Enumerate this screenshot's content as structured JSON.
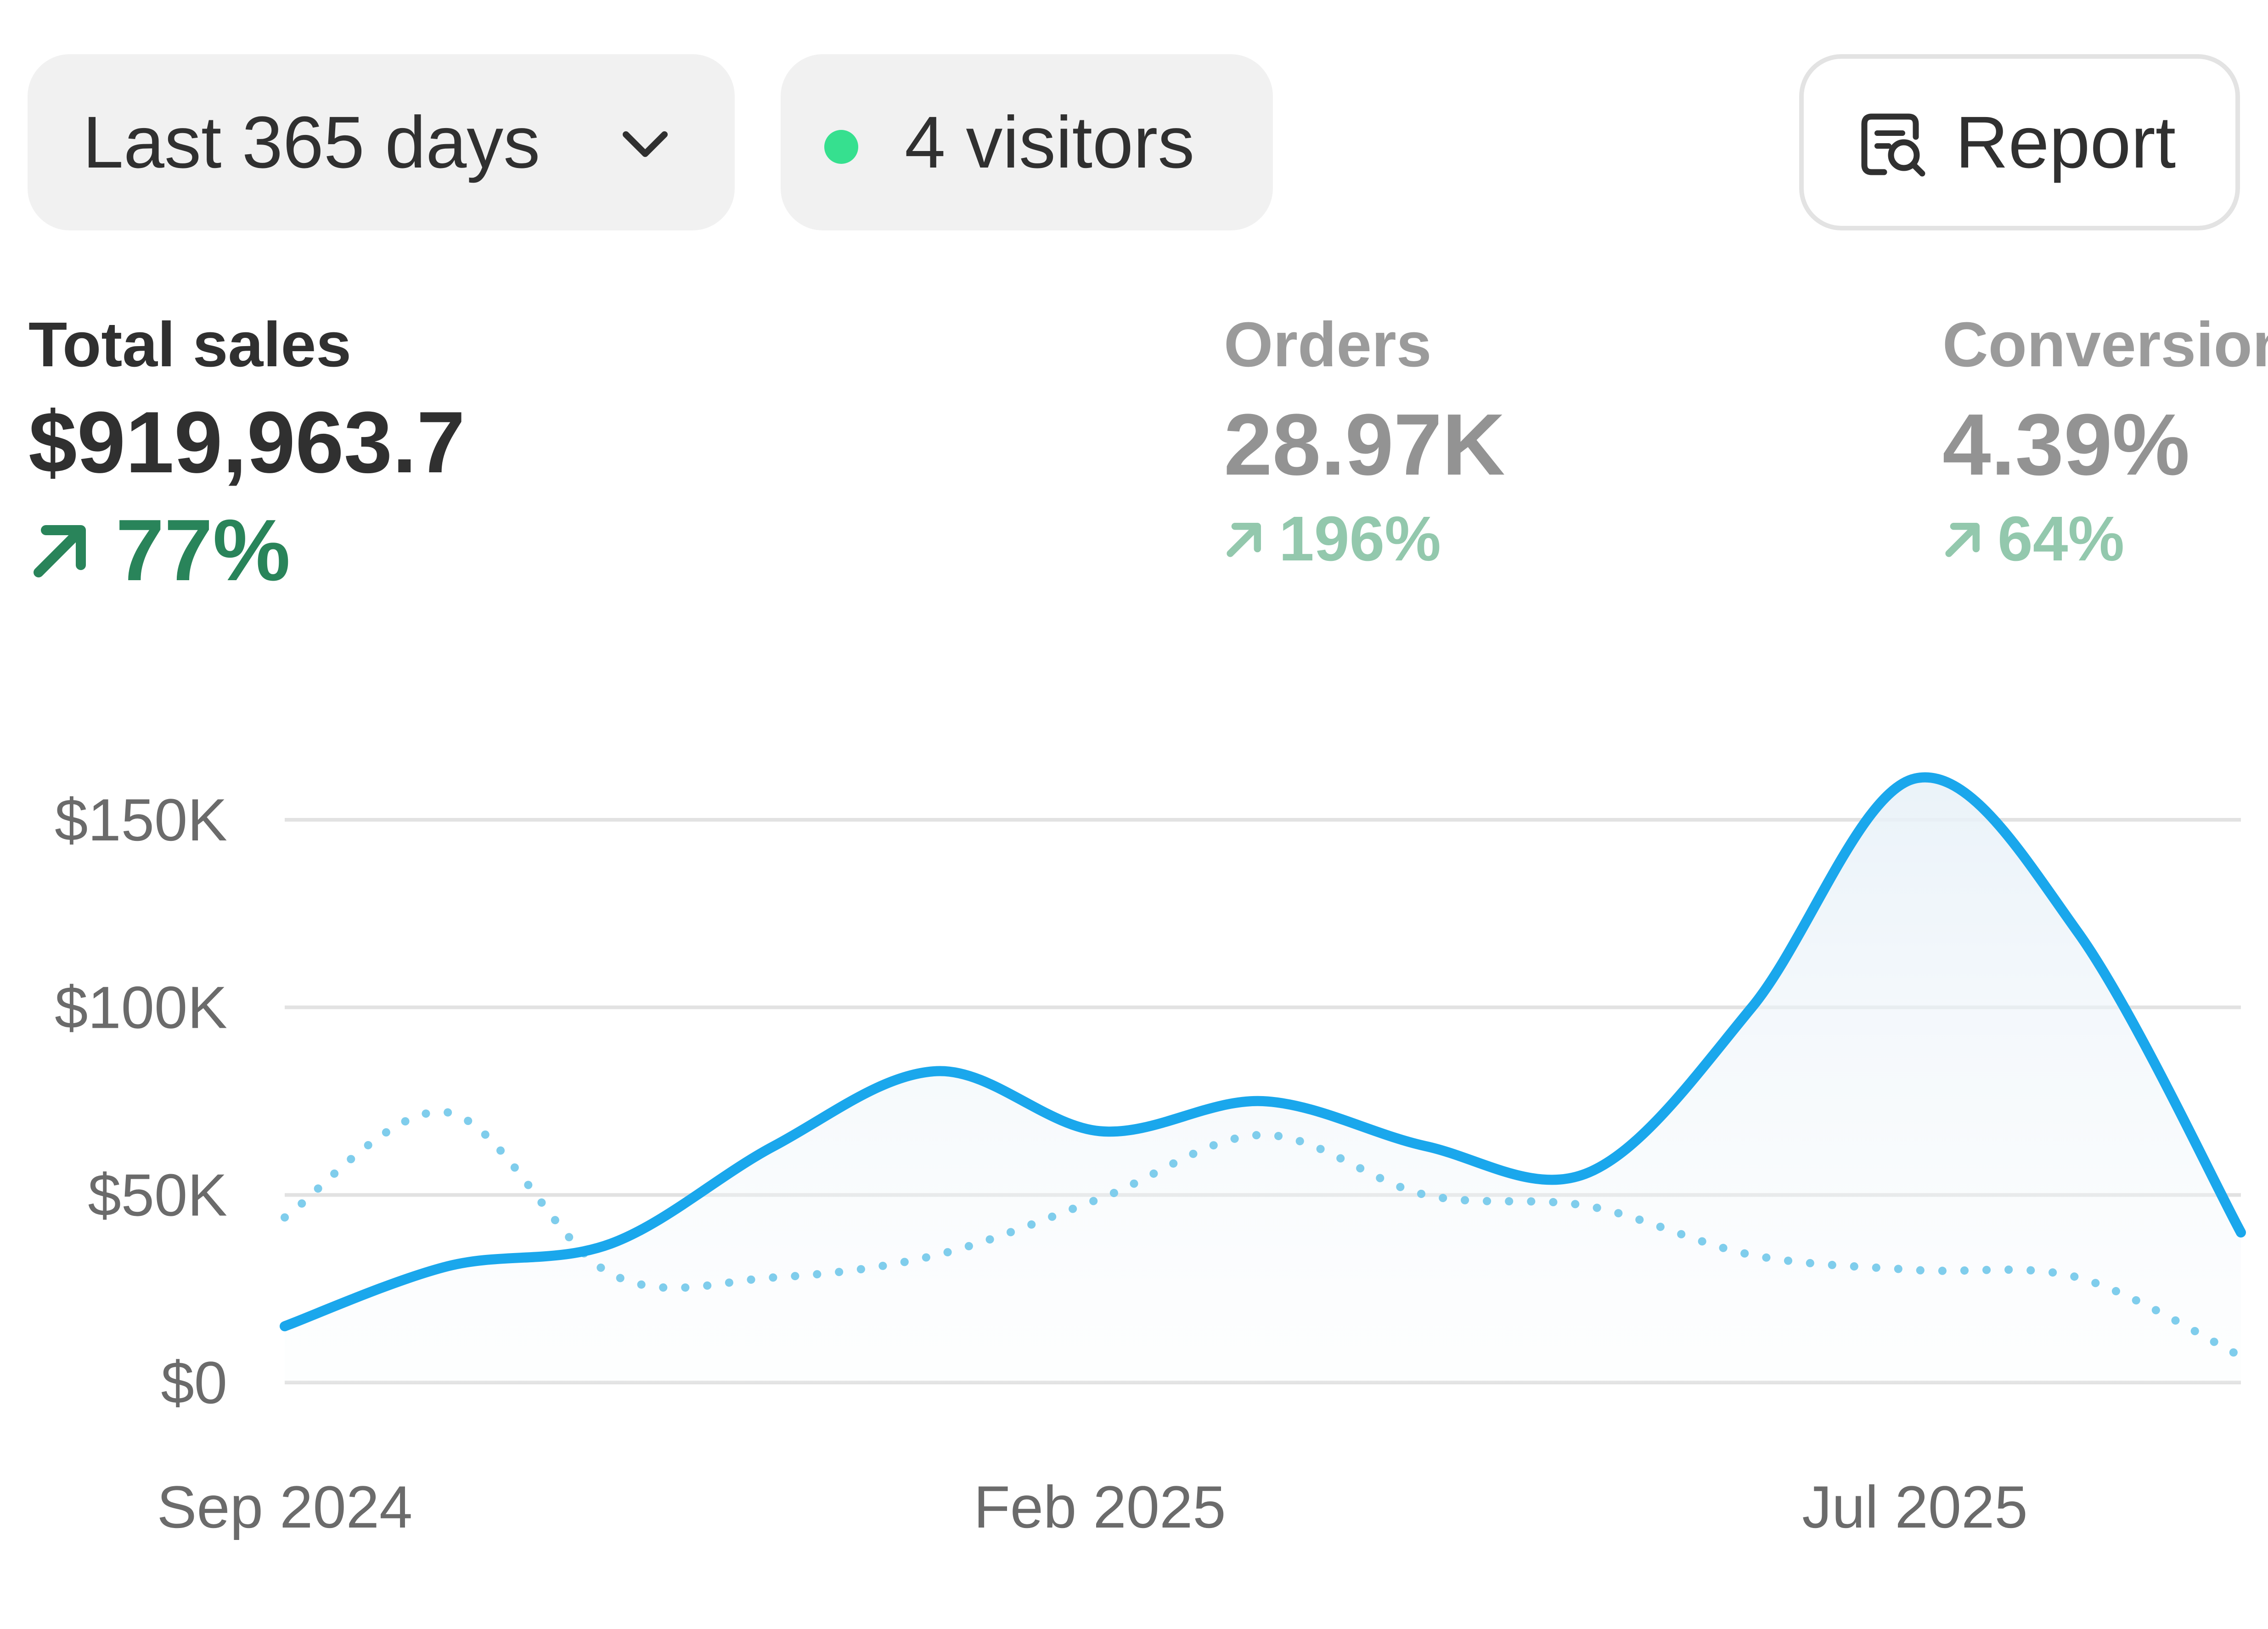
{
  "filters": {
    "date_range_label": "Last 365 days",
    "visitors_label": "4 visitors",
    "report_label": "Report"
  },
  "metrics": [
    {
      "label": "Total sales",
      "value": "$919,963.7",
      "delta": "77%",
      "trend": "up"
    },
    {
      "label": "Orders",
      "value": "28.97K",
      "delta": "196%",
      "trend": "up"
    },
    {
      "label": "Conversion",
      "value": "4.39%",
      "delta": "64%",
      "trend": "up"
    }
  ],
  "colors": {
    "current_series": "#1aa7ec",
    "previous_series": "#7fcdec",
    "positive": "#29845a",
    "live_dot": "#36e08f"
  },
  "icons": {
    "chevron": "chevron-down-icon",
    "report": "report-search-icon",
    "trend": "arrow-up-right-icon"
  },
  "chart_data": {
    "type": "line",
    "y_tick_labels": [
      "$150K",
      "$100K",
      "$50K",
      "$0"
    ],
    "y_ticks": [
      150000,
      100000,
      50000,
      0
    ],
    "ylim": [
      0,
      150000
    ],
    "x_tick_labels": [
      "Sep 2024",
      "Feb 2025",
      "Jul 2025"
    ],
    "x_tick_index": [
      0,
      5,
      10
    ],
    "grid": true,
    "series": [
      {
        "values": [
          15000,
          31000,
          37000,
          63000,
          83000,
          67000,
          75000,
          63000,
          56000,
          100000,
          161000,
          120000,
          40000
        ]
      },
      {
        "values": [
          44000,
          72000,
          29000,
          28000,
          34000,
          49000,
          66000,
          50000,
          47000,
          34000,
          30000,
          28000,
          7000
        ],
        "style": "dotted"
      }
    ]
  }
}
